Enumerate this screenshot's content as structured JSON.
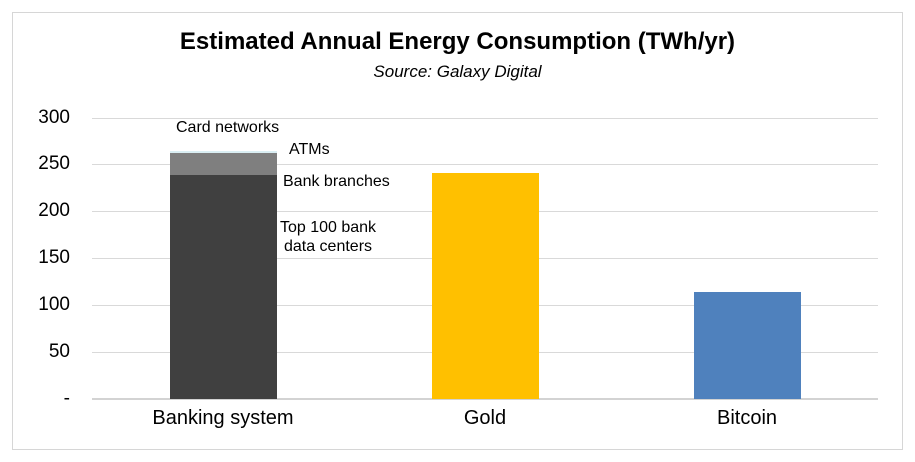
{
  "chart_data": {
    "type": "bar",
    "title": "Estimated Annual Energy Consumption (TWh/yr)",
    "subtitle": "Source: Galaxy Digital",
    "xlabel": "",
    "ylabel": "",
    "ylim": [
      0,
      300
    ],
    "grid": true,
    "legend": "none",
    "yticks": [
      {
        "label": "300",
        "value": 300
      },
      {
        "label": "250",
        "value": 250
      },
      {
        "label": "200",
        "value": 200
      },
      {
        "label": "150",
        "value": 150
      },
      {
        "label": "100",
        "value": 100
      },
      {
        "label": "50",
        "value": 50
      },
      {
        "label": "-",
        "value": 0
      }
    ],
    "categories": [
      "Banking system",
      "Gold",
      "Bitcoin"
    ],
    "bars": [
      {
        "category": "Banking system",
        "total": 264,
        "segments": [
          {
            "label": "Top 100 bank data centers",
            "value": 239,
            "color": "#404040"
          },
          {
            "label": "Bank branches",
            "value": 20,
            "color": "#7f7f7f"
          },
          {
            "label": "ATMs",
            "value": 3,
            "color": "#7f7f7f"
          },
          {
            "label": "Card networks",
            "value": 2,
            "color": "#daeef3"
          }
        ]
      },
      {
        "category": "Gold",
        "total": 241,
        "segments": [
          {
            "label": "Gold",
            "value": 241,
            "color": "#ffc000"
          }
        ]
      },
      {
        "category": "Bitcoin",
        "total": 114,
        "segments": [
          {
            "label": "Bitcoin",
            "value": 114,
            "color": "#4f81bd"
          }
        ]
      }
    ],
    "annotations": [
      {
        "text": "Card networks"
      },
      {
        "text": "ATMs"
      },
      {
        "text": "Bank branches"
      },
      {
        "text": "Top 100 bank\ndata centers"
      }
    ],
    "colors": {
      "grid": "#d9d9d9",
      "axis_line": "#d3d3d3",
      "frame_border": "#d6d6d6",
      "text": "#000000",
      "banking_dark": "#404040",
      "banking_gray": "#7f7f7f",
      "banking_card_networks": "#daeef3",
      "gold": "#ffc000",
      "bitcoin": "#4f81bd"
    }
  }
}
